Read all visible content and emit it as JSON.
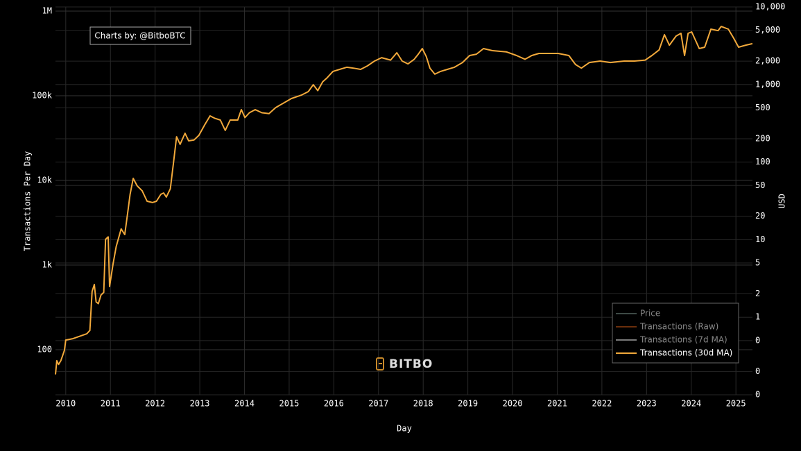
{
  "chart_data": {
    "type": "line",
    "annotation": "Charts by: @BitboBTC",
    "watermark": "BITBO",
    "xlabel": "Day",
    "ylabel": "Transactions Per Day",
    "y2label": "USD",
    "log_y": true,
    "log_y2": true,
    "grid": true,
    "legend_position": "lower right",
    "x": [
      2009.77,
      2009.8,
      2009.84,
      2009.89,
      2009.97,
      2010.0,
      2010.16,
      2010.47,
      2010.54,
      2010.59,
      2010.64,
      2010.68,
      2010.73,
      2010.79,
      2010.85,
      2010.89,
      2010.95,
      2010.98,
      2011.06,
      2011.13,
      2011.24,
      2011.32,
      2011.4,
      2011.44,
      2011.51,
      2011.6,
      2011.71,
      2011.82,
      2011.94,
      2012.03,
      2012.13,
      2012.19,
      2012.25,
      2012.34,
      2012.41,
      2012.48,
      2012.56,
      2012.67,
      2012.75,
      2012.87,
      2012.98,
      2013.11,
      2013.23,
      2013.34,
      2013.46,
      2013.57,
      2013.68,
      2013.85,
      2013.93,
      2014.01,
      2014.11,
      2014.24,
      2014.39,
      2014.55,
      2014.7,
      2014.89,
      2015.05,
      2015.28,
      2015.43,
      2015.54,
      2015.64,
      2015.75,
      2015.85,
      2015.98,
      2016.13,
      2016.29,
      2016.44,
      2016.6,
      2016.75,
      2016.91,
      2017.07,
      2017.27,
      2017.41,
      2017.53,
      2017.66,
      2017.8,
      2017.89,
      2017.98,
      2018.07,
      2018.15,
      2018.26,
      2018.39,
      2018.54,
      2018.7,
      2018.88,
      2019.04,
      2019.19,
      2019.35,
      2019.55,
      2019.86,
      2020.09,
      2020.28,
      2020.43,
      2020.59,
      2020.79,
      2021.02,
      2021.26,
      2021.41,
      2021.54,
      2021.72,
      2021.96,
      2022.19,
      2022.5,
      2022.73,
      2022.97,
      2023.12,
      2023.28,
      2023.4,
      2023.51,
      2023.66,
      2023.77,
      2023.85,
      2023.93,
      2024.01,
      2024.18,
      2024.3,
      2024.44,
      2024.6,
      2024.67,
      2024.83,
      2024.95,
      2025.06,
      2025.22,
      2025.37
    ],
    "series": [
      {
        "name": "Transactions (30d MA)",
        "color": "#f2a93b",
        "values": [
          51,
          74,
          67,
          74,
          98,
          130,
          135,
          154,
          169,
          488,
          589,
          367,
          350,
          444,
          475,
          2010,
          2150,
          557,
          1040,
          1660,
          2670,
          2290,
          4700,
          6850,
          10560,
          8600,
          7530,
          5670,
          5470,
          5670,
          6850,
          7110,
          6350,
          7960,
          16000,
          32800,
          26700,
          36000,
          29300,
          30000,
          34100,
          45300,
          57800,
          54000,
          51600,
          38900,
          51600,
          51600,
          68500,
          55300,
          63000,
          68500,
          63000,
          61500,
          72500,
          82800,
          92700,
          102000,
          112000,
          135000,
          115000,
          146000,
          163000,
          194000,
          205000,
          217000,
          212000,
          205000,
          225000,
          257000,
          282000,
          264000,
          322000,
          257000,
          238000,
          270000,
          310000,
          361000,
          290000,
          212000,
          180000,
          194000,
          205000,
          217000,
          247000,
          299000,
          310000,
          361000,
          341000,
          330000,
          299000,
          270000,
          299000,
          316000,
          316000,
          316000,
          299000,
          234000,
          212000,
          247000,
          257000,
          247000,
          257000,
          257000,
          264000,
          299000,
          348000,
          526000,
          396000,
          507000,
          547000,
          299000,
          547000,
          568000,
          361000,
          375000,
          612000,
          587000,
          659000,
          612000,
          479000,
          375000,
          396000,
          413000
        ]
      }
    ],
    "hidden_series": [
      {
        "name": "Price",
        "color": "#3d4a45",
        "visible": false
      },
      {
        "name": "Transactions (Raw)",
        "color": "#6b2f0c",
        "visible": false
      },
      {
        "name": "Transactions (7d MA)",
        "color": "#7a7a7a",
        "visible": false
      }
    ],
    "xlim": [
      2009.77,
      2025.37
    ],
    "xticks": [
      2010,
      2011,
      2012,
      2013,
      2014,
      2015,
      2016,
      2017,
      2018,
      2019,
      2020,
      2021,
      2022,
      2023,
      2024,
      2025
    ],
    "ylim": [
      29.3,
      1120000
    ],
    "yticks": [
      100,
      {
        "value": 1000,
        "label": "1k"
      },
      {
        "value": 10000,
        "label": "10k"
      },
      {
        "value": 100000,
        "label": "100k"
      },
      {
        "value": 1000000,
        "label": "1M"
      }
    ],
    "y2lim": [
      0.1,
      10000
    ],
    "y2ticks": [
      {
        "value": 10000,
        "label": "10,000"
      },
      {
        "value": 5000,
        "label": "5,000"
      },
      {
        "value": 2000,
        "label": "2,000"
      },
      {
        "value": 1000,
        "label": "1,000"
      },
      500,
      200,
      100,
      50,
      20,
      10,
      5,
      2,
      1,
      {
        "value": 0.5,
        "label": "0"
      },
      {
        "value": 0.2,
        "label": "0"
      },
      {
        "value": 0.1,
        "label": "0"
      }
    ]
  }
}
